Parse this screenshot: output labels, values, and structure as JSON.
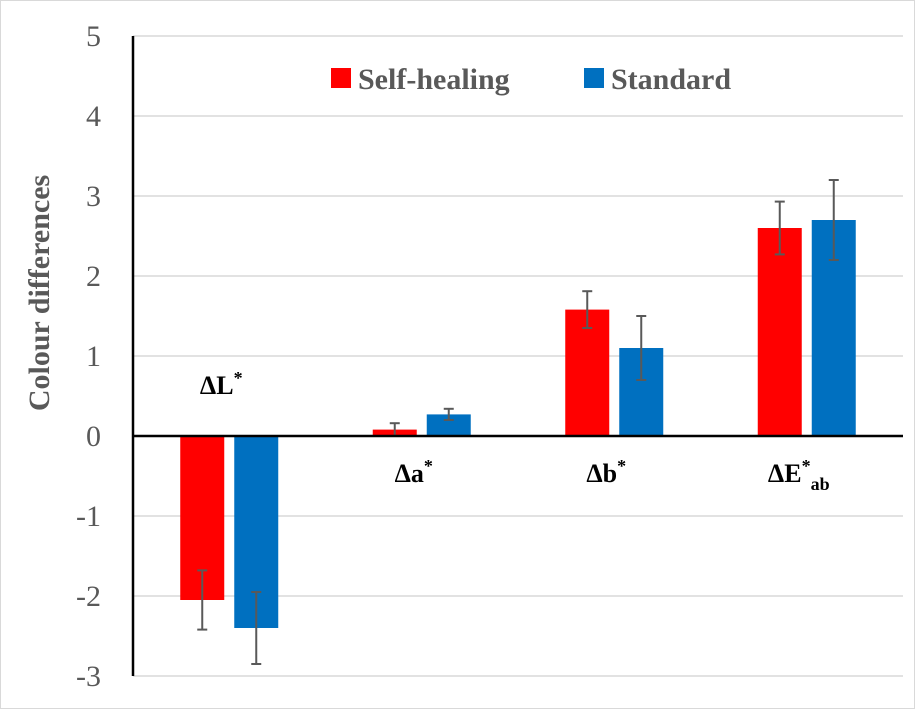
{
  "chart_data": {
    "type": "bar",
    "categories": [
      {
        "main": "ΔL",
        "sup": "*",
        "sub": ""
      },
      {
        "main": "Δa",
        "sup": "*",
        "sub": ""
      },
      {
        "main": "Δb",
        "sup": "*",
        "sub": ""
      },
      {
        "main": "ΔE",
        "sup": "*",
        "sub": "ab"
      }
    ],
    "series": [
      {
        "name": "Self-healing",
        "color": "#ff0000",
        "values": [
          -2.05,
          0.08,
          1.58,
          2.6
        ],
        "errors": [
          0.37,
          0.08,
          0.23,
          0.33
        ]
      },
      {
        "name": "Standard",
        "color": "#0070c0",
        "values": [
          -2.4,
          0.27,
          1.1,
          2.7
        ],
        "errors": [
          0.45,
          0.07,
          0.4,
          0.5
        ]
      }
    ],
    "xlabel": "",
    "ylabel": "Colour differences",
    "ylim": [
      -3,
      5
    ],
    "yticks": [
      "5",
      "4",
      "3",
      "2",
      "1",
      "0",
      "-1",
      "-2",
      "-3"
    ],
    "grid": true,
    "legend_position": "top"
  }
}
